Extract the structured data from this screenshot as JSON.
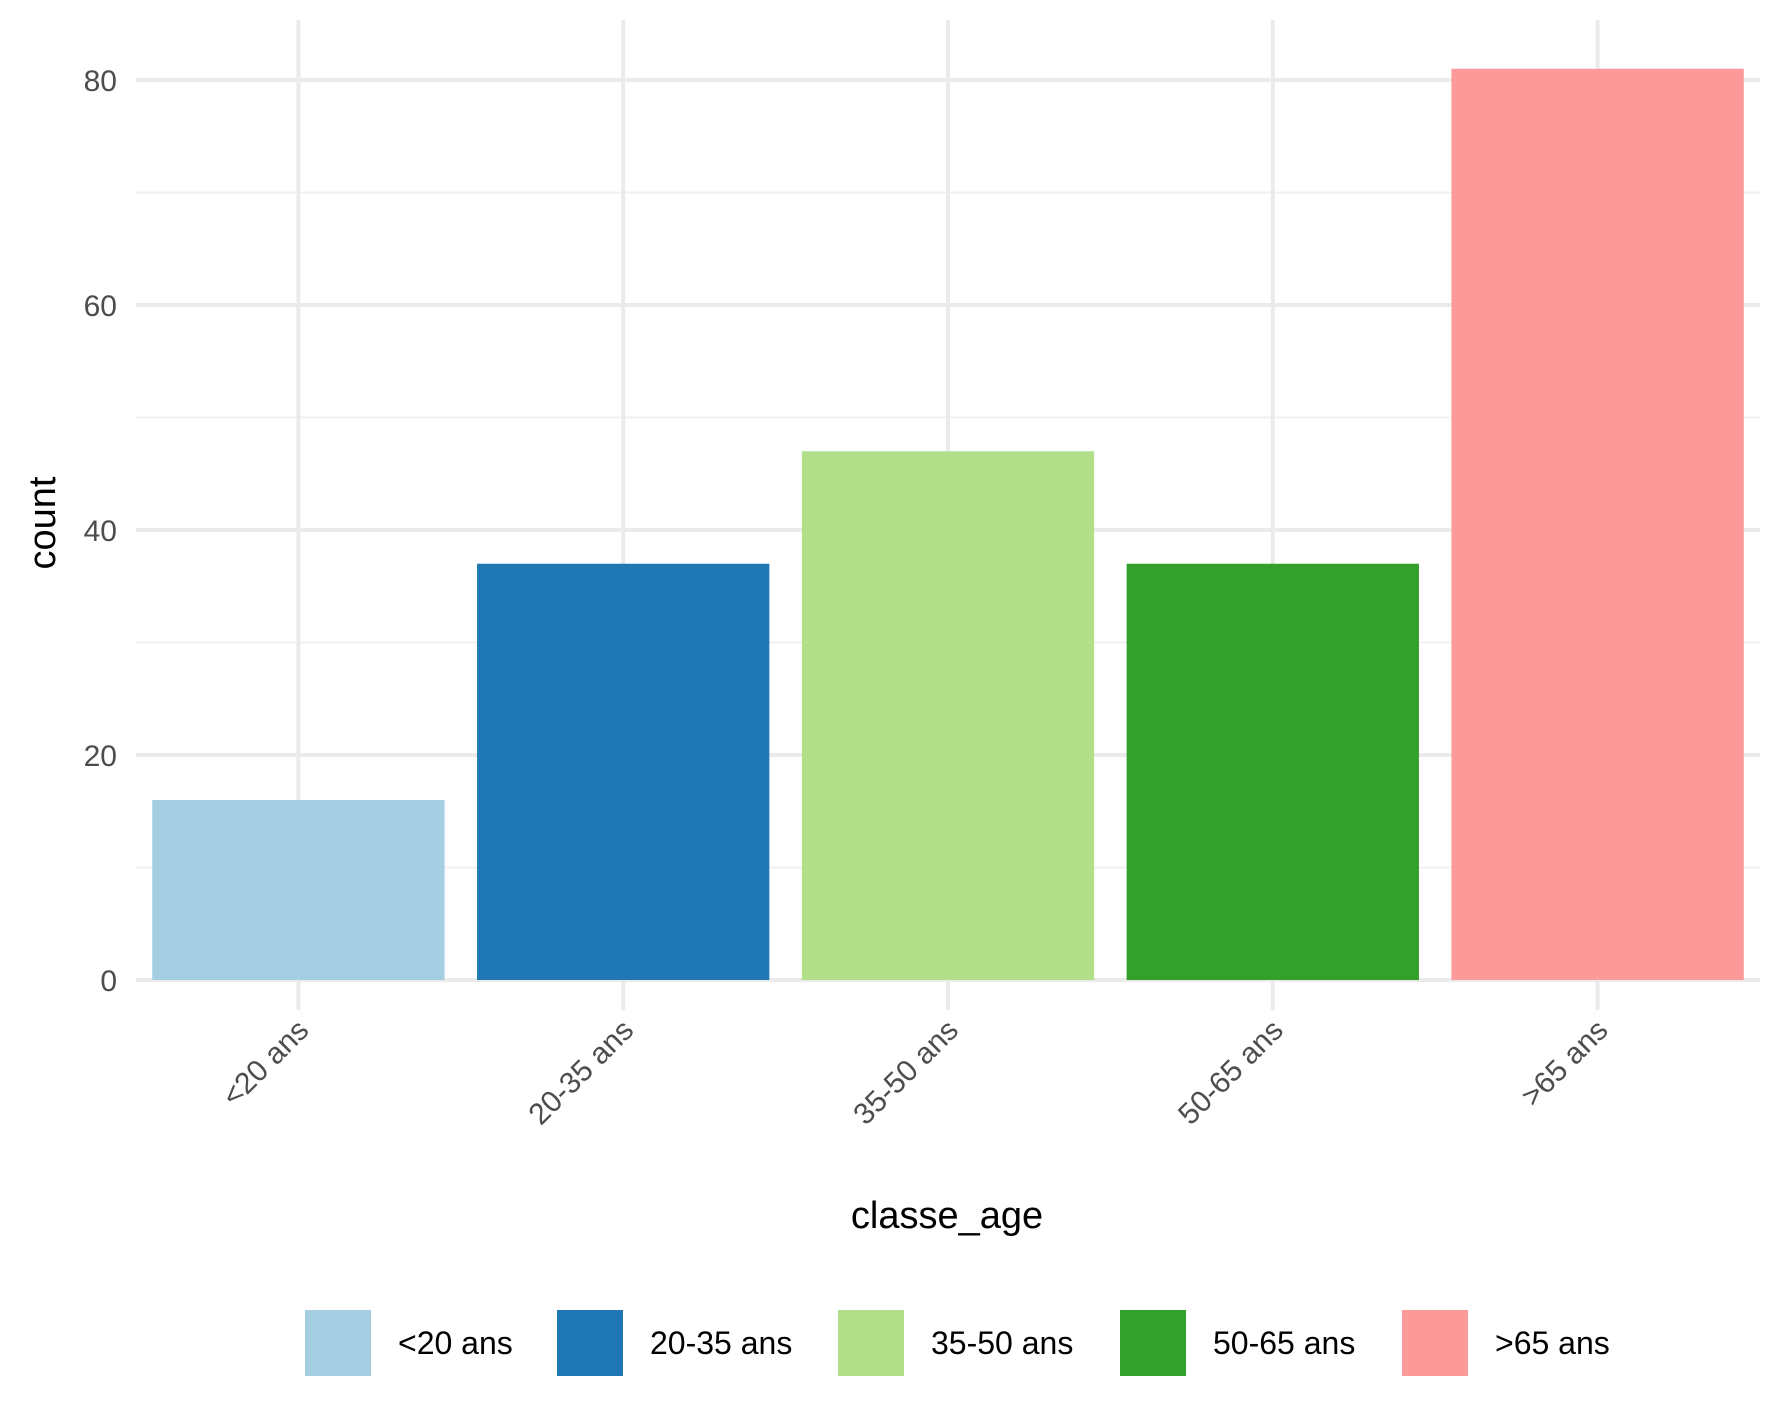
{
  "chart_data": {
    "type": "bar",
    "title": "",
    "xlabel": "classe_age",
    "ylabel": "count",
    "categories": [
      "<20 ans",
      "20-35 ans",
      "35-50 ans",
      "50-65 ans",
      ">65 ans"
    ],
    "values": [
      16,
      37,
      47,
      37,
      81
    ],
    "colors": [
      "#A6CEE3",
      "#1F78B4",
      "#B2DF8A",
      "#33A02C",
      "#FB9A99"
    ],
    "ylim": [
      0,
      85
    ],
    "yticks": [
      0,
      20,
      40,
      60,
      80
    ],
    "grid": true,
    "legend": {
      "position": "bottom",
      "entries": [
        "<20 ans",
        "20-35 ans",
        "35-50 ans",
        "50-65 ans",
        ">65 ans"
      ]
    }
  }
}
